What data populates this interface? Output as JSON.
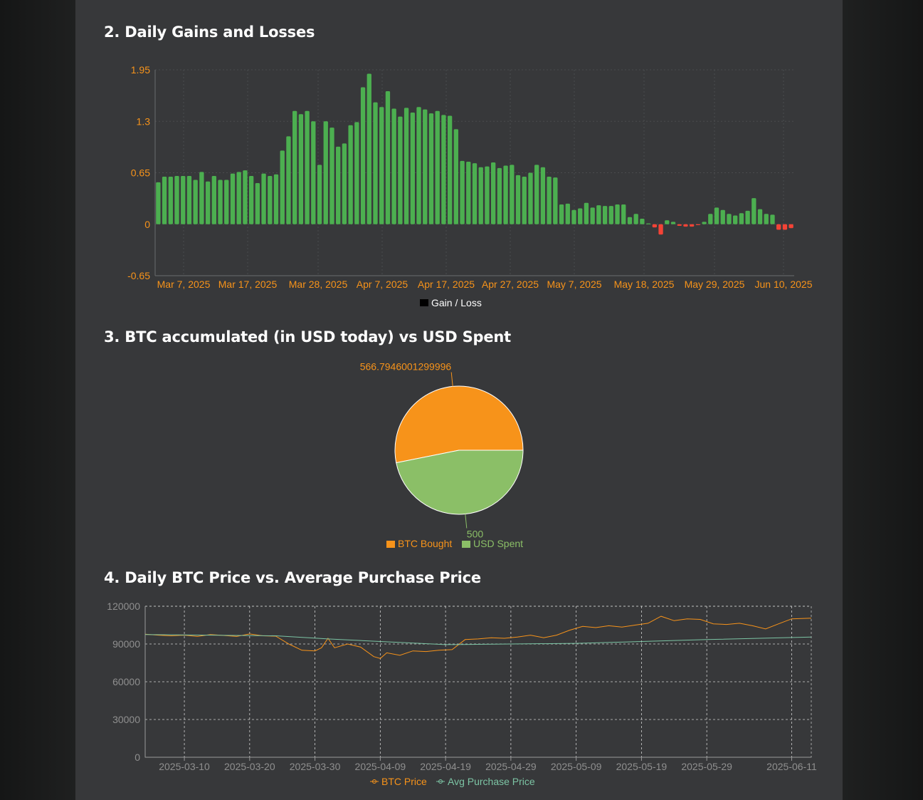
{
  "sections": {
    "gains": {
      "title": "2. Daily Gains and Losses"
    },
    "pie": {
      "title": "3. BTC accumulated (in USD today) vs USD Spent"
    },
    "price": {
      "title": "4. Daily BTC Price vs. Average Purchase Price"
    }
  },
  "colors": {
    "panel_bg": "#37383a",
    "page_bg": "#1e1f1f",
    "gain": "#4caf50",
    "loss": "#f44336",
    "orange": "#f7931a",
    "green_light": "#8bbf67",
    "avg_line": "#7cc4a4",
    "grid": "#4a4b4d"
  },
  "chart_data": [
    {
      "type": "bar",
      "ylim": [
        -0.65,
        1.95
      ],
      "yticks": [
        "1.95",
        "1.3",
        "0.65",
        "0",
        "-0.65"
      ],
      "xticks": [
        "Mar 7, 2025",
        "Mar 17, 2025",
        "Mar 28, 2025",
        "Apr 7, 2025",
        "Apr 17, 2025",
        "Apr 27, 2025",
        "May 7, 2025",
        "May 18, 2025",
        "May 29, 2025",
        "Jun 10, 2025"
      ],
      "legend": [
        "Gain / Loss"
      ],
      "values": [
        0.53,
        0.6,
        0.6,
        0.61,
        0.61,
        0.61,
        0.56,
        0.66,
        0.54,
        0.61,
        0.56,
        0.56,
        0.64,
        0.66,
        0.68,
        0.61,
        0.52,
        0.64,
        0.61,
        0.63,
        0.93,
        1.11,
        1.43,
        1.39,
        1.43,
        1.3,
        0.75,
        1.3,
        1.22,
        0.98,
        1.02,
        1.25,
        1.29,
        1.73,
        1.9,
        1.54,
        1.48,
        1.68,
        1.46,
        1.36,
        1.47,
        1.41,
        1.48,
        1.45,
        1.4,
        1.43,
        1.38,
        1.37,
        1.2,
        0.8,
        0.79,
        0.77,
        0.72,
        0.73,
        0.78,
        0.71,
        0.74,
        0.75,
        0.62,
        0.6,
        0.65,
        0.75,
        0.72,
        0.6,
        0.59,
        0.25,
        0.26,
        0.18,
        0.2,
        0.27,
        0.21,
        0.24,
        0.23,
        0.23,
        0.25,
        0.25,
        0.09,
        0.13,
        0.07,
        0.01,
        -0.04,
        -0.13,
        0.05,
        0.03,
        -0.02,
        -0.03,
        -0.03,
        -0.01,
        0.03,
        0.13,
        0.21,
        0.18,
        0.13,
        0.11,
        0.14,
        0.17,
        0.33,
        0.19,
        0.13,
        0.12,
        -0.07,
        -0.07,
        -0.05
      ]
    },
    {
      "type": "pie",
      "labels": [
        "BTC Bought",
        "USD Spent"
      ],
      "values": [
        566.7946001299996,
        500
      ],
      "data_labels": [
        "566.7946001299996",
        "500"
      ],
      "colors": [
        "#f7931a",
        "#8bbf67"
      ]
    },
    {
      "type": "line",
      "ylim": [
        0,
        120000
      ],
      "yticks": [
        "120000",
        "90000",
        "60000",
        "30000",
        "0"
      ],
      "xticks": [
        "2025-03-10",
        "2025-03-20",
        "2025-03-30",
        "2025-04-09",
        "2025-04-19",
        "2025-04-29",
        "2025-05-09",
        "2025-05-19",
        "2025-05-29",
        "2025-06-11"
      ],
      "xrange": [
        "2025-03-04",
        "2025-06-14"
      ],
      "grid": true,
      "legend": [
        "BTC Price",
        "Avg Purchase Price"
      ],
      "series": [
        {
          "name": "BTC Price",
          "color": "#f7931a",
          "points": [
            [
              "2025-03-04",
              97800
            ],
            [
              "2025-03-06",
              97000
            ],
            [
              "2025-03-08",
              96500
            ],
            [
              "2025-03-10",
              97000
            ],
            [
              "2025-03-12",
              96000
            ],
            [
              "2025-03-14",
              97500
            ],
            [
              "2025-03-16",
              96800
            ],
            [
              "2025-03-18",
              96000
            ],
            [
              "2025-03-20",
              98000
            ],
            [
              "2025-03-22",
              96500
            ],
            [
              "2025-03-24",
              96200
            ],
            [
              "2025-03-26",
              90000
            ],
            [
              "2025-03-28",
              85000
            ],
            [
              "2025-03-30",
              84500
            ],
            [
              "2025-03-31",
              87000
            ],
            [
              "2025-04-01",
              94500
            ],
            [
              "2025-04-02",
              87000
            ],
            [
              "2025-04-04",
              90000
            ],
            [
              "2025-04-06",
              87500
            ],
            [
              "2025-04-08",
              80000
            ],
            [
              "2025-04-09",
              78500
            ],
            [
              "2025-04-10",
              83000
            ],
            [
              "2025-04-12",
              81000
            ],
            [
              "2025-04-14",
              84500
            ],
            [
              "2025-04-16",
              84000
            ],
            [
              "2025-04-18",
              85000
            ],
            [
              "2025-04-20",
              85500
            ],
            [
              "2025-04-22",
              93500
            ],
            [
              "2025-04-24",
              94000
            ],
            [
              "2025-04-26",
              95000
            ],
            [
              "2025-04-28",
              94500
            ],
            [
              "2025-04-30",
              95500
            ],
            [
              "2025-05-02",
              97000
            ],
            [
              "2025-05-04",
              95000
            ],
            [
              "2025-05-06",
              97000
            ],
            [
              "2025-05-08",
              101000
            ],
            [
              "2025-05-10",
              104000
            ],
            [
              "2025-05-12",
              103000
            ],
            [
              "2025-05-14",
              104500
            ],
            [
              "2025-05-16",
              103500
            ],
            [
              "2025-05-18",
              105000
            ],
            [
              "2025-05-20",
              106500
            ],
            [
              "2025-05-22",
              112000
            ],
            [
              "2025-05-24",
              108500
            ],
            [
              "2025-05-26",
              110000
            ],
            [
              "2025-05-28",
              109500
            ],
            [
              "2025-05-30",
              106000
            ],
            [
              "2025-06-01",
              105500
            ],
            [
              "2025-06-03",
              106500
            ],
            [
              "2025-06-05",
              104500
            ],
            [
              "2025-06-07",
              102000
            ],
            [
              "2025-06-09",
              106000
            ],
            [
              "2025-06-11",
              110000
            ],
            [
              "2025-06-14",
              110500
            ]
          ]
        },
        {
          "name": "Avg Purchase Price",
          "color": "#7cc4a4",
          "points": [
            [
              "2025-03-04",
              97500
            ],
            [
              "2025-03-14",
              97000
            ],
            [
              "2025-03-24",
              96500
            ],
            [
              "2025-04-01",
              94000
            ],
            [
              "2025-04-09",
              92000
            ],
            [
              "2025-04-19",
              89500
            ],
            [
              "2025-04-29",
              90000
            ],
            [
              "2025-05-09",
              90500
            ],
            [
              "2025-05-19",
              92000
            ],
            [
              "2025-05-29",
              93500
            ],
            [
              "2025-06-14",
              95500
            ]
          ]
        }
      ]
    }
  ]
}
